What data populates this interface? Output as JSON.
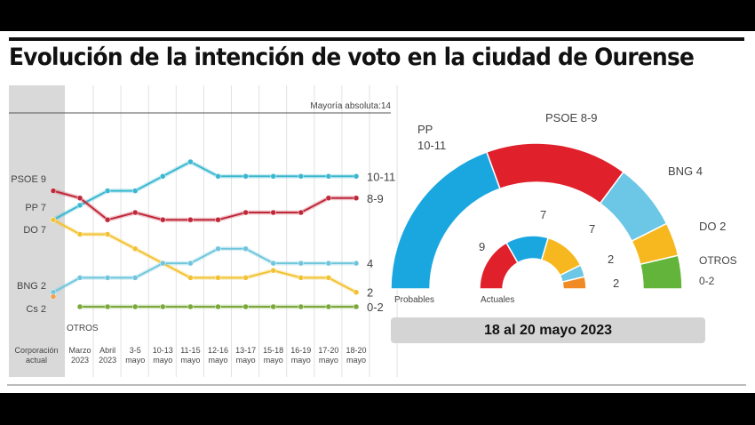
{
  "title": "Evolución de la intención de voto en la ciudad de Ourense",
  "majority_label": "Mayoría absoluta:14",
  "date_label": "18 al 20 mayo 2023",
  "chart_data": [
    {
      "type": "line",
      "title": "Evolución de la intención de voto",
      "categories": [
        "Corporación actual",
        "Marzo 2023",
        "Abril 2023",
        "3-5 mayo",
        "10-13 mayo",
        "11-15 mayo",
        "12-16 mayo",
        "13-17 mayo",
        "15-18 mayo",
        "16-19 mayo",
        "17-20 mayo",
        "18-20 mayo"
      ],
      "category_lines": [
        [
          "Corporación",
          "actual"
        ],
        [
          "Marzo",
          "2023"
        ],
        [
          "Abril",
          "2023"
        ],
        [
          "3-5",
          "mayo"
        ],
        [
          "10-13",
          "mayo"
        ],
        [
          "11-15",
          "mayo"
        ],
        [
          "12-16",
          "mayo"
        ],
        [
          "13-17",
          "mayo"
        ],
        [
          "15-18",
          "mayo"
        ],
        [
          "16-19",
          "mayo"
        ],
        [
          "17-20",
          "mayo"
        ],
        [
          "18-20",
          "mayo"
        ]
      ],
      "ylim": [
        0,
        14
      ],
      "reference_line": {
        "value": 14,
        "label": "Mayoría absoluta:14"
      },
      "series": [
        {
          "name": "PP",
          "color": "#3ab8d0",
          "start_label": "PP 7",
          "end_label": "10-11",
          "values": [
            7,
            8,
            9,
            9,
            10,
            11,
            10,
            10,
            10,
            10,
            10,
            10
          ]
        },
        {
          "name": "PSOE",
          "color": "#c0283a",
          "start_label": "PSOE 9",
          "end_label": "8-9",
          "values": [
            9,
            8.5,
            7,
            7.5,
            7,
            7,
            7,
            7.5,
            7.5,
            7.5,
            8.5,
            8.5
          ]
        },
        {
          "name": "DO",
          "color": "#f2c232",
          "start_label": "DO 7",
          "end_label": "2",
          "values": [
            7,
            6,
            6,
            5,
            4,
            3,
            3,
            3,
            3.5,
            3,
            3,
            2
          ]
        },
        {
          "name": "BNG",
          "color": "#6fc6dc",
          "start_label": "BNG 2",
          "end_label": "4",
          "values": [
            2,
            3,
            3,
            3,
            4,
            4,
            5,
            5,
            4,
            4,
            4,
            4
          ]
        },
        {
          "name": "Cs",
          "color": "#f0a050",
          "start_label": "Cs 2",
          "end_label": "",
          "values": [
            1.7,
            null,
            null,
            null,
            null,
            null,
            null,
            null,
            null,
            null,
            null,
            null
          ]
        },
        {
          "name": "OTROS",
          "color": "#7aa83a",
          "start_label": "OTROS",
          "end_label": "0-2",
          "values": [
            null,
            1,
            1,
            1,
            1,
            1,
            1,
            1,
            1,
            1,
            1,
            1
          ]
        }
      ]
    },
    {
      "type": "pie",
      "title": "Probables",
      "subtitle": "18 al 20 mayo 2023",
      "style": "semicircle",
      "slices": [
        {
          "label": "PP 10-11",
          "value": 10.5,
          "color": "#1aa7e0"
        },
        {
          "label": "PSOE 8-9",
          "value": 8.5,
          "color": "#e0202a"
        },
        {
          "label": "BNG 4",
          "value": 4,
          "color": "#6cc6e6"
        },
        {
          "label": "DO 2",
          "value": 2,
          "color": "#f6b81e"
        },
        {
          "label": "OTROS 0-2",
          "value": 2,
          "color": "#62b43a"
        }
      ]
    },
    {
      "type": "pie",
      "title": "Actuales",
      "style": "semicircle",
      "slices": [
        {
          "label": "9",
          "value": 9,
          "color": "#e0202a"
        },
        {
          "label": "7",
          "value": 7,
          "color": "#1aa7e0"
        },
        {
          "label": "7",
          "value": 7,
          "color": "#f6b81e"
        },
        {
          "label": "2",
          "value": 2,
          "color": "#6cc6e6"
        },
        {
          "label": "2",
          "value": 2,
          "color": "#f08a24"
        }
      ]
    }
  ]
}
